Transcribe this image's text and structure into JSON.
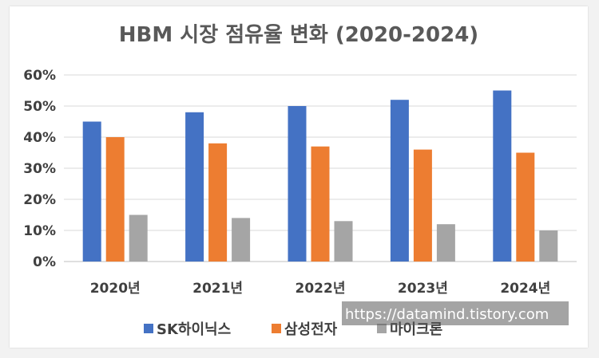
{
  "chart_data": {
    "type": "bar",
    "title": "HBM 시장 점유율 변화 (2020-2024)",
    "categories": [
      "2020년",
      "2021년",
      "2022년",
      "2023년",
      "2024년"
    ],
    "series": [
      {
        "name": "SK하이닉스",
        "color": "#4472c4",
        "values": [
          45,
          48,
          50,
          52,
          55
        ]
      },
      {
        "name": "삼성전자",
        "color": "#ed7d31",
        "values": [
          40,
          38,
          37,
          36,
          35
        ]
      },
      {
        "name": "마이크론",
        "color": "#a5a5a5",
        "values": [
          15,
          14,
          13,
          12,
          10
        ]
      }
    ],
    "ylim": [
      0,
      60
    ],
    "yticks": [
      "0%",
      "10%",
      "20%",
      "30%",
      "40%",
      "50%",
      "60%"
    ],
    "grid": true,
    "legend": "bottom"
  },
  "watermark": "https://datamind.tistory.com"
}
